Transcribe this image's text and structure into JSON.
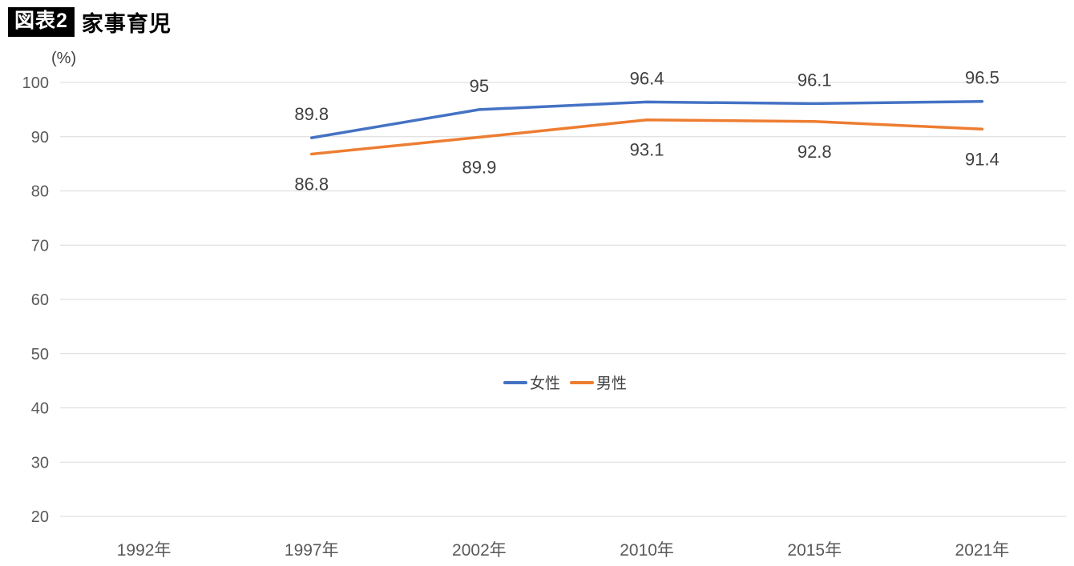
{
  "header": {
    "badge": "図表2",
    "title": "家事育児"
  },
  "chart_data": {
    "type": "line",
    "title": "家事育児",
    "unit_label": "(%)",
    "categories": [
      "1992年",
      "1997年",
      "2002年",
      "2010年",
      "2015年",
      "2021年"
    ],
    "series": [
      {
        "name": "女性",
        "key": "female",
        "color": "#4472C4",
        "values": [
          null,
          89.8,
          95,
          96.4,
          96.1,
          96.5
        ],
        "labels": [
          "",
          "89.8",
          "95",
          "96.4",
          "96.1",
          "96.5"
        ]
      },
      {
        "name": "男性",
        "key": "male",
        "color": "#ED7D31",
        "values": [
          null,
          86.8,
          89.9,
          93.1,
          92.8,
          91.4
        ],
        "labels": [
          "",
          "86.8",
          "89.9",
          "93.1",
          "92.8",
          "91.4"
        ]
      }
    ],
    "y_ticks": [
      100,
      90,
      80,
      70,
      60,
      50,
      40,
      30,
      20
    ],
    "ylim": [
      20,
      100
    ],
    "grid": true,
    "legend_position": "center-middle",
    "colors": {
      "gridline": "#d9d9d9",
      "axis_text": "#595959",
      "data_label": "#404040"
    }
  }
}
